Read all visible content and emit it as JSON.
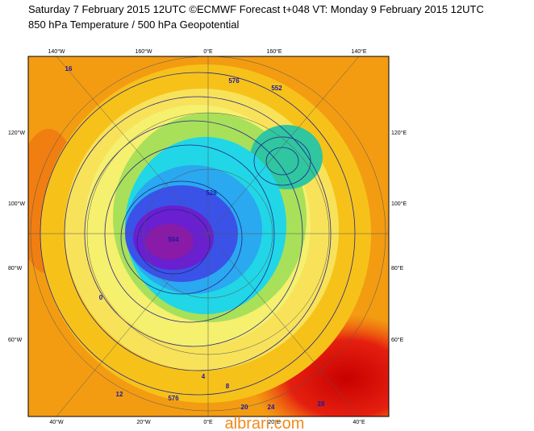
{
  "header": {
    "title": "Saturday 7 February 2015 12UTC ©ECMWF Forecast t+048 VT: Monday 9 February 2015 12UTC",
    "subtitle": "850 hPa Temperature / 500 hPa Geopotential"
  },
  "map": {
    "top_labels": [
      "140°W",
      "160°W",
      "0°E",
      "160°E",
      "140°E"
    ],
    "bottom_labels": [
      "40°W",
      "20°W",
      "0°E",
      "20°E",
      "40°E"
    ],
    "left_labels": [
      "120°W",
      "100°W",
      "80°W",
      "60°W"
    ],
    "right_labels": [
      "120°E",
      "100°E",
      "80°E",
      "60°E"
    ],
    "contour_labels": [
      "576",
      "552",
      "528",
      "504",
      "576",
      "16",
      "12",
      "8",
      "4",
      "0",
      "24",
      "28",
      "20"
    ],
    "watermark": "albrari.com"
  }
}
